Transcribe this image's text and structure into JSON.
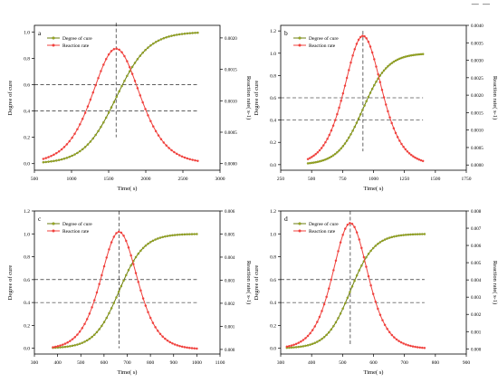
{
  "figure": {
    "top_mark": "— —"
  },
  "colors": {
    "cure": "#6b7d10",
    "cure_marker": "#9aa81f",
    "rate": "#f0403c",
    "guide": "#000000",
    "frame": "#000000"
  },
  "chart_data": [
    {
      "type": "line",
      "panel_label": "a",
      "xlabel": "Time(  s)",
      "ylabel_left": "Degree of cure",
      "ylabel_right": "Reaction rate(  s-1)",
      "xlim": [
        500,
        3000
      ],
      "xticks": [
        500,
        1000,
        1500,
        2000,
        2500,
        3000
      ],
      "ylim_left": [
        -0.05,
        1.05
      ],
      "yticks_left": [
        0.0,
        0.2,
        0.4,
        0.6,
        0.8,
        1.0
      ],
      "ylim_right": [
        -0.000105,
        0.0022
      ],
      "yticks_right": [
        "0.0000",
        "0.0005",
        "0.0010",
        "0.0015",
        "0.0020"
      ],
      "series": [
        {
          "name": "Degree of cure",
          "axis": "left",
          "curve": "sigmoid",
          "x_start": 620,
          "x_end": 2700,
          "x_mid": 1600,
          "scale": 215,
          "points": 60
        },
        {
          "name": "Reaction rate",
          "axis": "right",
          "curve": "bell",
          "x_start": 620,
          "x_end": 2700,
          "x_peak": 1600,
          "peak": 0.00183,
          "scale": 215,
          "points": 60
        }
      ],
      "guides": {
        "h_values": [
          0.4,
          0.6
        ],
        "h_x_end": 2700,
        "v_x": 1600,
        "v_top": 1.07,
        "v_bottom": 0.2
      }
    },
    {
      "type": "line",
      "panel_label": "b",
      "xlabel": "Time(  s)",
      "ylabel_left": "Degree of cure",
      "ylabel_right": "Reaction rate(  s-1)",
      "xlim": [
        250,
        1750
      ],
      "xticks": [
        250,
        500,
        750,
        1000,
        1250,
        1500,
        1750
      ],
      "ylim_left": [
        -0.05,
        1.25
      ],
      "yticks_left": [
        0.0,
        0.2,
        0.4,
        0.6,
        0.8,
        1.0,
        1.2
      ],
      "ylim_right": [
        -0.00015,
        0.004
      ],
      "yticks_right": [
        "0.0000",
        "0.0005",
        "0.0010",
        "0.0015",
        "0.0020",
        "0.0025",
        "0.0030",
        "0.0035",
        "0.0040"
      ],
      "series": [
        {
          "name": "Degree of cure",
          "axis": "left",
          "curve": "sigmoid",
          "x_start": 470,
          "x_end": 1400,
          "x_mid": 915,
          "scale": 100,
          "points": 60
        },
        {
          "name": "Reaction rate",
          "axis": "right",
          "curve": "bell",
          "x_start": 470,
          "x_end": 1400,
          "x_peak": 915,
          "peak": 0.0037,
          "scale": 100,
          "points": 60
        }
      ],
      "guides": {
        "h_values": [
          0.4,
          0.6
        ],
        "h_x_end": 1400,
        "v_x": 915,
        "v_top": 1.2,
        "v_bottom": 0.12
      }
    },
    {
      "type": "line",
      "panel_label": "c",
      "xlabel": "Time(  s)",
      "ylabel_left": "Degree of cure",
      "ylabel_right": "Reaction rate(  s-1)",
      "xlim": [
        300,
        1100
      ],
      "xticks": [
        300,
        400,
        500,
        600,
        700,
        800,
        900,
        1000,
        1100
      ],
      "ylim_left": [
        -0.05,
        1.2
      ],
      "yticks_left": [
        0.0,
        0.2,
        0.4,
        0.6,
        0.8,
        1.0,
        1.2
      ],
      "ylim_right": [
        -0.0002,
        0.006
      ],
      "yticks_right": [
        "0.000",
        "0.001",
        "0.002",
        "0.003",
        "0.004",
        "0.005",
        "0.006"
      ],
      "series": [
        {
          "name": "Degree of cure",
          "axis": "left",
          "curve": "sigmoid",
          "x_start": 380,
          "x_end": 1000,
          "x_mid": 665,
          "scale": 53,
          "points": 60
        },
        {
          "name": "Reaction rate",
          "axis": "right",
          "curve": "bell",
          "x_start": 380,
          "x_end": 1000,
          "x_peak": 665,
          "peak": 0.0051,
          "scale": 53,
          "points": 60
        }
      ],
      "guides": {
        "h_values": [
          0.4,
          0.6
        ],
        "h_x_end": 1000,
        "v_x": 665,
        "v_top": 1.2,
        "v_bottom": 0.0
      }
    },
    {
      "type": "line",
      "panel_label": "d",
      "xlabel": "Time(  s)",
      "ylabel_left": "Degree of cure",
      "ylabel_right": "Reaction rate(  s-1)",
      "xlim": [
        300,
        900
      ],
      "xticks": [
        300,
        400,
        500,
        600,
        700,
        800,
        900
      ],
      "ylim_left": [
        -0.05,
        1.2
      ],
      "yticks_left": [
        0.0,
        0.2,
        0.4,
        0.6,
        0.8,
        1.0,
        1.2
      ],
      "ylim_right": [
        -0.0003,
        0.008
      ],
      "yticks_right": [
        "0.000",
        "0.001",
        "0.002",
        "0.003",
        "0.004",
        "0.005",
        "0.006",
        "0.007",
        "0.008"
      ],
      "series": [
        {
          "name": "Degree of cure",
          "axis": "left",
          "curve": "sigmoid",
          "x_start": 320,
          "x_end": 765,
          "x_mid": 525,
          "scale": 38,
          "points": 60
        },
        {
          "name": "Reaction rate",
          "axis": "right",
          "curve": "bell",
          "x_start": 320,
          "x_end": 765,
          "x_peak": 525,
          "peak": 0.0073,
          "scale": 38,
          "points": 60
        }
      ],
      "guides": {
        "h_values": [
          0.4,
          0.6
        ],
        "h_x_end": 765,
        "v_x": 525,
        "v_top": 1.2,
        "v_bottom": 0.02
      }
    }
  ]
}
